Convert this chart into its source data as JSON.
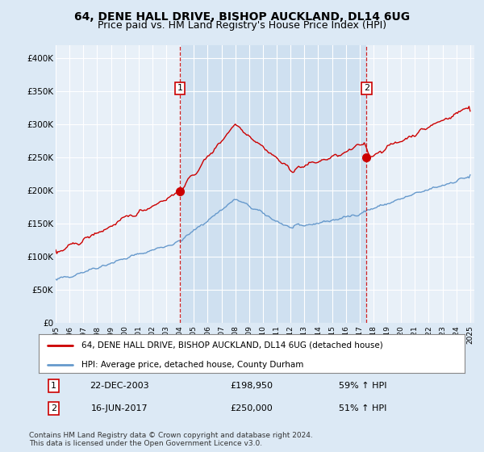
{
  "title": "64, DENE HALL DRIVE, BISHOP AUCKLAND, DL14 6UG",
  "subtitle": "Price paid vs. HM Land Registry's House Price Index (HPI)",
  "title_fontsize": 10,
  "subtitle_fontsize": 9,
  "bg_color": "#dce9f5",
  "plot_bg_color": "#e8f0f8",
  "plot_highlight_color": "#cfe0f0",
  "grid_color": "#ffffff",
  "red_color": "#cc0000",
  "blue_color": "#6699cc",
  "ylim": [
    0,
    420000
  ],
  "yticks": [
    0,
    50000,
    100000,
    150000,
    200000,
    250000,
    300000,
    350000,
    400000
  ],
  "ytick_labels": [
    "£0",
    "£50K",
    "£100K",
    "£150K",
    "£200K",
    "£250K",
    "£300K",
    "£350K",
    "£400K"
  ],
  "purchase1_year": 2004.0,
  "purchase1_price": 198950,
  "purchase2_year": 2017.5,
  "purchase2_price": 250000,
  "legend_label_red": "64, DENE HALL DRIVE, BISHOP AUCKLAND, DL14 6UG (detached house)",
  "legend_label_blue": "HPI: Average price, detached house, County Durham",
  "annotation1_label": "1",
  "annotation1_date": "22-DEC-2003",
  "annotation1_price": "£198,950",
  "annotation1_hpi": "59% ↑ HPI",
  "annotation2_label": "2",
  "annotation2_date": "16-JUN-2017",
  "annotation2_price": "£250,000",
  "annotation2_hpi": "51% ↑ HPI",
  "footer": "Contains HM Land Registry data © Crown copyright and database right 2024.\nThis data is licensed under the Open Government Licence v3.0."
}
